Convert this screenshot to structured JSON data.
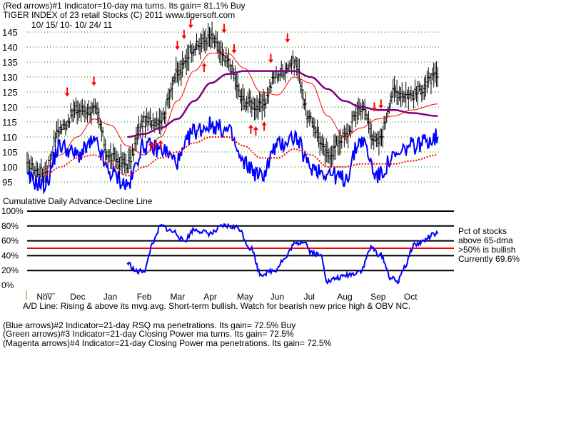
{
  "header": {
    "line1": "(Red arrows)#1 Indicator=10-day ma turns.  Its gain= 81.1% Buy",
    "line2": "TIGER INDEX of  23 retail Stocks  (C) 2011   www.tigersoft.com",
    "line3": "10/ 15/ 10-  10/ 24/ 11"
  },
  "breadth_title": "Cumulative Daily Advance-Decline Line",
  "legend": {
    "l1": "Pct of stocks",
    "l2": "above 65-dma",
    "l3": ">50% is bullish",
    "l4": "Currently  69.6%"
  },
  "ad_line_note": "A/D Line: Rising & above its mvg.avg. Short-term bullish. Watch for bearish new price high & OBV NC.",
  "footer": {
    "f1": "(Blue arrows)#2 Indicator=21-day RSQ ma penetrations.  Its gain= 72.5% Buy",
    "f2": "(Green arrows)#3 Indicator=21-day Closing Power ma turns.  Its gain= 72.5%",
    "f3": "(Magenta arrows)#4 Indicator=21-day Closing Power ma penetrations.  Its gain= 72.5%"
  },
  "colors": {
    "price": "#000000",
    "ma_red": "#ff0000",
    "ma_magenta": "#800080",
    "blue": "#0000ff",
    "arrow_red": "#ff0000",
    "grid": "#008000",
    "ref50": "#ff0000"
  },
  "chart_data": [
    {
      "type": "line",
      "title": "TIGER INDEX of 23 retail Stocks",
      "ylim": [
        92,
        146
      ],
      "yticks": [
        95,
        100,
        105,
        110,
        115,
        120,
        125,
        130,
        135,
        140,
        145
      ],
      "grid": true,
      "x_labels": [
        "Nov",
        "Dec",
        "Jan",
        "Feb",
        "Mar",
        "Apr",
        "May",
        "Jun",
        "Jul",
        "Aug",
        "Sep",
        "Oct"
      ],
      "x_label_pos": [
        0.5,
        1.5,
        2.5,
        3.5,
        4.5,
        5.5,
        6.5,
        7.5,
        8.5,
        9.5,
        10.5,
        11.5
      ],
      "x": [
        0,
        0.5,
        1,
        1.5,
        2,
        2.5,
        3,
        3.5,
        4,
        4.5,
        5,
        5.5,
        6,
        6.5,
        7,
        7.5,
        8,
        8.5,
        9,
        9.5,
        10,
        10.5,
        11,
        11.5,
        12.3
      ],
      "series": [
        {
          "name": "Price",
          "values": [
            100,
            98,
            113,
            119,
            119,
            103,
            101,
            115,
            116,
            131,
            140,
            143,
            135,
            122,
            120,
            131,
            135,
            115,
            104,
            110,
            120,
            108,
            125,
            124,
            130
          ]
        },
        {
          "name": "21-day ma (red)",
          "values": [
            null,
            99,
            104,
            110,
            116,
            114,
            107,
            104,
            110,
            122,
            132,
            138,
            138,
            133,
            125,
            124,
            130,
            128,
            117,
            110,
            113,
            116,
            117,
            119,
            121
          ]
        },
        {
          "name": "65-day ma (magenta)",
          "values": [
            null,
            null,
            null,
            null,
            null,
            null,
            110,
            111,
            113,
            116,
            122,
            128,
            131,
            132,
            132,
            132,
            132,
            130,
            126,
            122,
            120,
            119,
            119,
            118,
            117
          ]
        },
        {
          "name": "Breadth (blue)",
          "values": [
            96,
            94,
            107,
            104,
            108,
            98,
            94,
            107,
            106,
            102,
            112,
            114,
            112,
            101,
            97,
            107,
            110,
            100,
            98,
            96,
            109,
            97,
            103,
            107,
            110
          ]
        },
        {
          "name": "Breadth ma (red dotted)",
          "values": [
            null,
            97,
            100,
            103,
            104,
            101,
            97,
            100,
            103,
            105,
            108,
            110,
            110,
            107,
            103,
            103,
            106,
            104,
            100,
            100,
            101,
            101,
            101,
            102,
            104
          ]
        }
      ],
      "arrows_down": [
        1.2,
        2.0,
        4.5,
        4.7,
        4.9,
        5.9,
        6.2,
        7.3,
        7.8,
        10.4,
        10.6
      ],
      "arrows_up": [
        3.7,
        3.85,
        4.0,
        5.3,
        6.7,
        6.85,
        7.1
      ]
    },
    {
      "type": "line",
      "title": "Pct of stocks above 65-dma",
      "ylim": [
        0,
        100
      ],
      "yticks": [
        0,
        20,
        40,
        60,
        80,
        100
      ],
      "reference": 50,
      "x": [
        3.0,
        3.3,
        3.5,
        3.8,
        4.0,
        4.4,
        4.7,
        5.0,
        5.5,
        5.9,
        6.3,
        6.7,
        7.0,
        7.4,
        7.7,
        8.0,
        8.3,
        8.5,
        8.8,
        9.0,
        9.3,
        9.7,
        10.0,
        10.3,
        10.6,
        10.9,
        11.1,
        11.3,
        11.6,
        12.3
      ],
      "values": [
        30,
        18,
        20,
        60,
        80,
        72,
        60,
        75,
        70,
        80,
        78,
        50,
        15,
        20,
        35,
        55,
        60,
        45,
        40,
        5,
        10,
        15,
        20,
        50,
        40,
        10,
        5,
        25,
        55,
        69.6
      ]
    }
  ]
}
